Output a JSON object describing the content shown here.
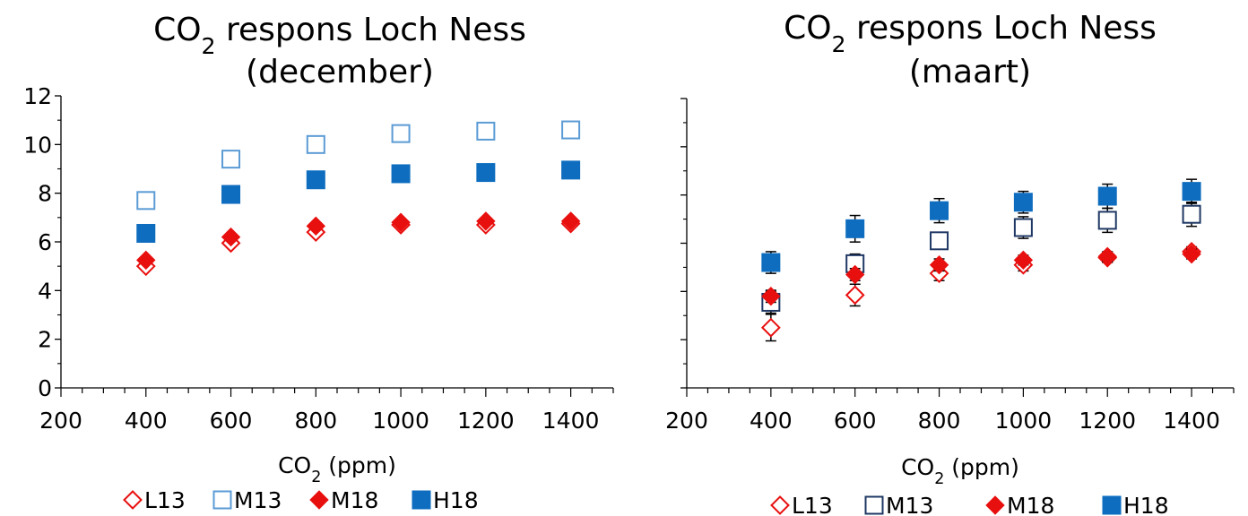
{
  "chart_data": [
    {
      "type": "scatter",
      "title": {
        "prefix": "CO",
        "sub": "2",
        "suffix": " respons Loch Ness",
        "line2": "(december)"
      },
      "xlabel": {
        "prefix": "CO",
        "sub": "2",
        "suffix": " (ppm)"
      },
      "ylabel": "",
      "xlim": [
        200,
        1500
      ],
      "ylim": [
        0,
        12
      ],
      "xticks": [
        200,
        400,
        600,
        800,
        1000,
        1200,
        1400
      ],
      "yticks": [
        0,
        2,
        4,
        6,
        8,
        10,
        12
      ],
      "grid": false,
      "legend": "bottom",
      "series": [
        {
          "name": "L13",
          "marker": "diamond-open",
          "color": "#e8100f",
          "x": [
            400,
            600,
            800,
            1000,
            1200,
            1400
          ],
          "y": [
            5.0,
            5.95,
            6.4,
            6.7,
            6.7,
            6.75
          ]
        },
        {
          "name": "M13",
          "marker": "square-open",
          "color": "#5b9bd5",
          "x": [
            400,
            600,
            800,
            1000,
            1200,
            1400
          ],
          "y": [
            7.7,
            9.4,
            10.0,
            10.45,
            10.55,
            10.6
          ]
        },
        {
          "name": "M18",
          "marker": "diamond-filled",
          "color": "#e8100f",
          "x": [
            400,
            600,
            800,
            1000,
            1200,
            1400
          ],
          "y": [
            5.25,
            6.2,
            6.65,
            6.8,
            6.85,
            6.85
          ]
        },
        {
          "name": "H18",
          "marker": "square-filled",
          "color": "#0e6dbf",
          "x": [
            400,
            600,
            800,
            1000,
            1200,
            1400
          ],
          "y": [
            6.35,
            7.95,
            8.55,
            8.8,
            8.85,
            8.95
          ]
        }
      ]
    },
    {
      "type": "scatter",
      "title": {
        "prefix": "CO",
        "sub": "2",
        "suffix": " respons Loch Ness",
        "line2": "(maart)"
      },
      "xlabel": {
        "prefix": "CO",
        "sub": "2",
        "suffix": " (ppm)"
      },
      "ylabel": "",
      "xlim": [
        200,
        1500
      ],
      "ylim": [
        0,
        12
      ],
      "xticks": [
        200,
        400,
        600,
        800,
        1000,
        1200,
        1400
      ],
      "yticks": [
        0,
        2,
        4,
        6,
        8,
        10,
        12
      ],
      "show_ytick_labels": false,
      "grid": false,
      "legend": "bottom",
      "series": [
        {
          "name": "L13",
          "marker": "diamond-open",
          "color": "#e8100f",
          "x": [
            400,
            600,
            800,
            1000,
            1200,
            1400
          ],
          "y": [
            2.5,
            3.85,
            4.75,
            5.1,
            5.4,
            5.65
          ],
          "err": [
            0.55,
            0.45,
            0.3,
            0.25,
            0.2,
            0.2
          ]
        },
        {
          "name": "M13",
          "marker": "square-open",
          "color": "#1f3864",
          "x": [
            400,
            600,
            800,
            1000,
            1200,
            1400
          ],
          "y": [
            3.55,
            5.15,
            6.1,
            6.65,
            6.95,
            7.2
          ],
          "err": [
            0.45,
            0.4,
            0.35,
            0.45,
            0.5,
            0.5
          ]
        },
        {
          "name": "M18",
          "marker": "diamond-filled",
          "color": "#e8100f",
          "x": [
            400,
            600,
            800,
            1000,
            1200,
            1400
          ],
          "y": [
            3.8,
            4.7,
            5.1,
            5.3,
            5.45,
            5.55
          ],
          "err": [
            0.25,
            0.25,
            0.25,
            0.2,
            0.2,
            0.2
          ]
        },
        {
          "name": "H18",
          "marker": "square-filled",
          "color": "#0e6dbf",
          "x": [
            400,
            600,
            800,
            1000,
            1200,
            1400
          ],
          "y": [
            5.2,
            6.6,
            7.35,
            7.7,
            7.95,
            8.15
          ],
          "err": [
            0.45,
            0.55,
            0.5,
            0.45,
            0.5,
            0.5
          ]
        }
      ]
    }
  ]
}
